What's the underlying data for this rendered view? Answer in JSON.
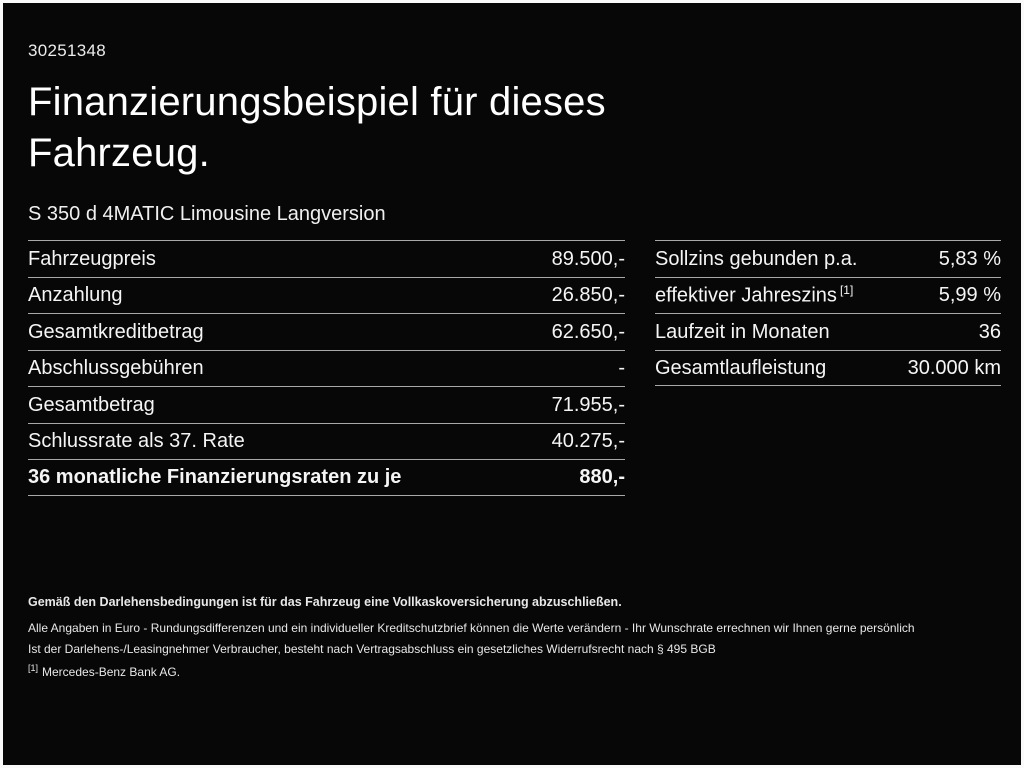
{
  "page": {
    "doc_id": "30251348",
    "title": "Finanzierungsbeispiel für dieses\nFahrzeug.",
    "vehicle": "S 350 d 4MATIC Limousine Langversion"
  },
  "left_table": {
    "rows": [
      {
        "label": "Fahrzeugpreis",
        "value": "89.500,-"
      },
      {
        "label": "Anzahlung",
        "value": "26.850,-"
      },
      {
        "label": "Gesamtkreditbetrag",
        "value": "62.650,-"
      },
      {
        "label": "Abschlussgebühren",
        "value": "-"
      },
      {
        "label": "Gesamtbetrag",
        "value": "71.955,-"
      },
      {
        "label": "Schlussrate als 37. Rate",
        "value": "40.275,-"
      },
      {
        "label": "36 monatliche Finanzierungsraten zu je",
        "value": "880,-"
      }
    ]
  },
  "right_table": {
    "rows": [
      {
        "label": "Sollzins gebunden p.a.",
        "value": "5,83 %"
      },
      {
        "label": "effektiver Jahreszins",
        "label_sup": "[1]",
        "value": "5,99 %"
      },
      {
        "label": "Laufzeit in Monaten",
        "value": "36"
      },
      {
        "label": "Gesamtlaufleistung",
        "value": "30.000 km"
      }
    ]
  },
  "footer": {
    "line1": "Gemäß den Darlehensbedingungen ist für das Fahrzeug eine Vollkaskoversicherung abzuschließen.",
    "line2": "Alle Angaben in Euro - Rundungsdifferenzen und ein individueller Kreditschutzbrief können die Werte verändern - Ihr Wunschrate errechnen wir Ihnen gerne persönlich",
    "line3": "Ist der Darlehens-/Leasingnehmer Verbraucher, besteht nach Vertragsabschluss ein gesetzliches Widerrufsrecht nach § 495 BGB",
    "footnote_marker": "[1]",
    "footnote_text": "Mercedes-Benz Bank AG."
  },
  "colors": {
    "background": "#070707",
    "text": "#f5f5f5",
    "divider": "#a8a8a8",
    "frame": "#fafafa"
  }
}
